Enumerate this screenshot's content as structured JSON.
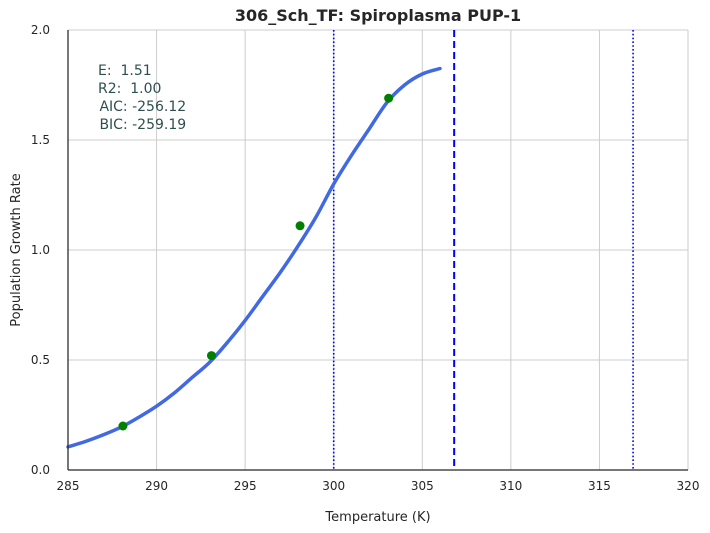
{
  "chart_data": {
    "type": "line",
    "title": "306_Sch_TF: Spiroplasma PUP-1",
    "xlabel": "Temperature (K)",
    "ylabel": "Population Growth Rate",
    "xlim": [
      285,
      320
    ],
    "ylim": [
      0.0,
      2.0
    ],
    "xticks": [
      285,
      290,
      295,
      300,
      305,
      310,
      315,
      320
    ],
    "xtick_labels": [
      "285",
      "290",
      "295",
      "300",
      "305",
      "310",
      "315",
      "320"
    ],
    "yticks": [
      0.0,
      0.5,
      1.0,
      1.5,
      2.0
    ],
    "ytick_labels": [
      "0.0",
      "0.5",
      "1.0",
      "1.5",
      "2.0"
    ],
    "grid": true,
    "colors": {
      "fit_line": "#4169e1",
      "points": "#008000",
      "vlines": "#0000ff",
      "grid": "#cccccc",
      "annotation": "#2f4f4f"
    },
    "fit_curve": {
      "x": [
        285,
        286,
        287,
        288,
        289,
        290,
        291,
        292,
        293,
        294,
        295,
        296,
        297,
        298,
        299,
        300,
        301,
        302,
        303,
        304,
        305,
        306
      ],
      "y": [
        0.105,
        0.13,
        0.16,
        0.195,
        0.24,
        0.29,
        0.35,
        0.42,
        0.49,
        0.58,
        0.68,
        0.79,
        0.9,
        1.02,
        1.15,
        1.3,
        1.43,
        1.55,
        1.67,
        1.75,
        1.8,
        1.825
      ]
    },
    "points": {
      "x": [
        288.1,
        293.1,
        298.1,
        303.1
      ],
      "y": [
        0.2,
        0.52,
        1.11,
        1.69
      ]
    },
    "vlines": [
      {
        "x": 300.0,
        "style": "dotted"
      },
      {
        "x": 306.8,
        "style": "dashed"
      },
      {
        "x": 316.9,
        "style": "dotted"
      }
    ],
    "annotations": [
      "E:  1.51",
      "R2:  1.00",
      " AIC: -256.12",
      " BIC: -259.19"
    ]
  }
}
